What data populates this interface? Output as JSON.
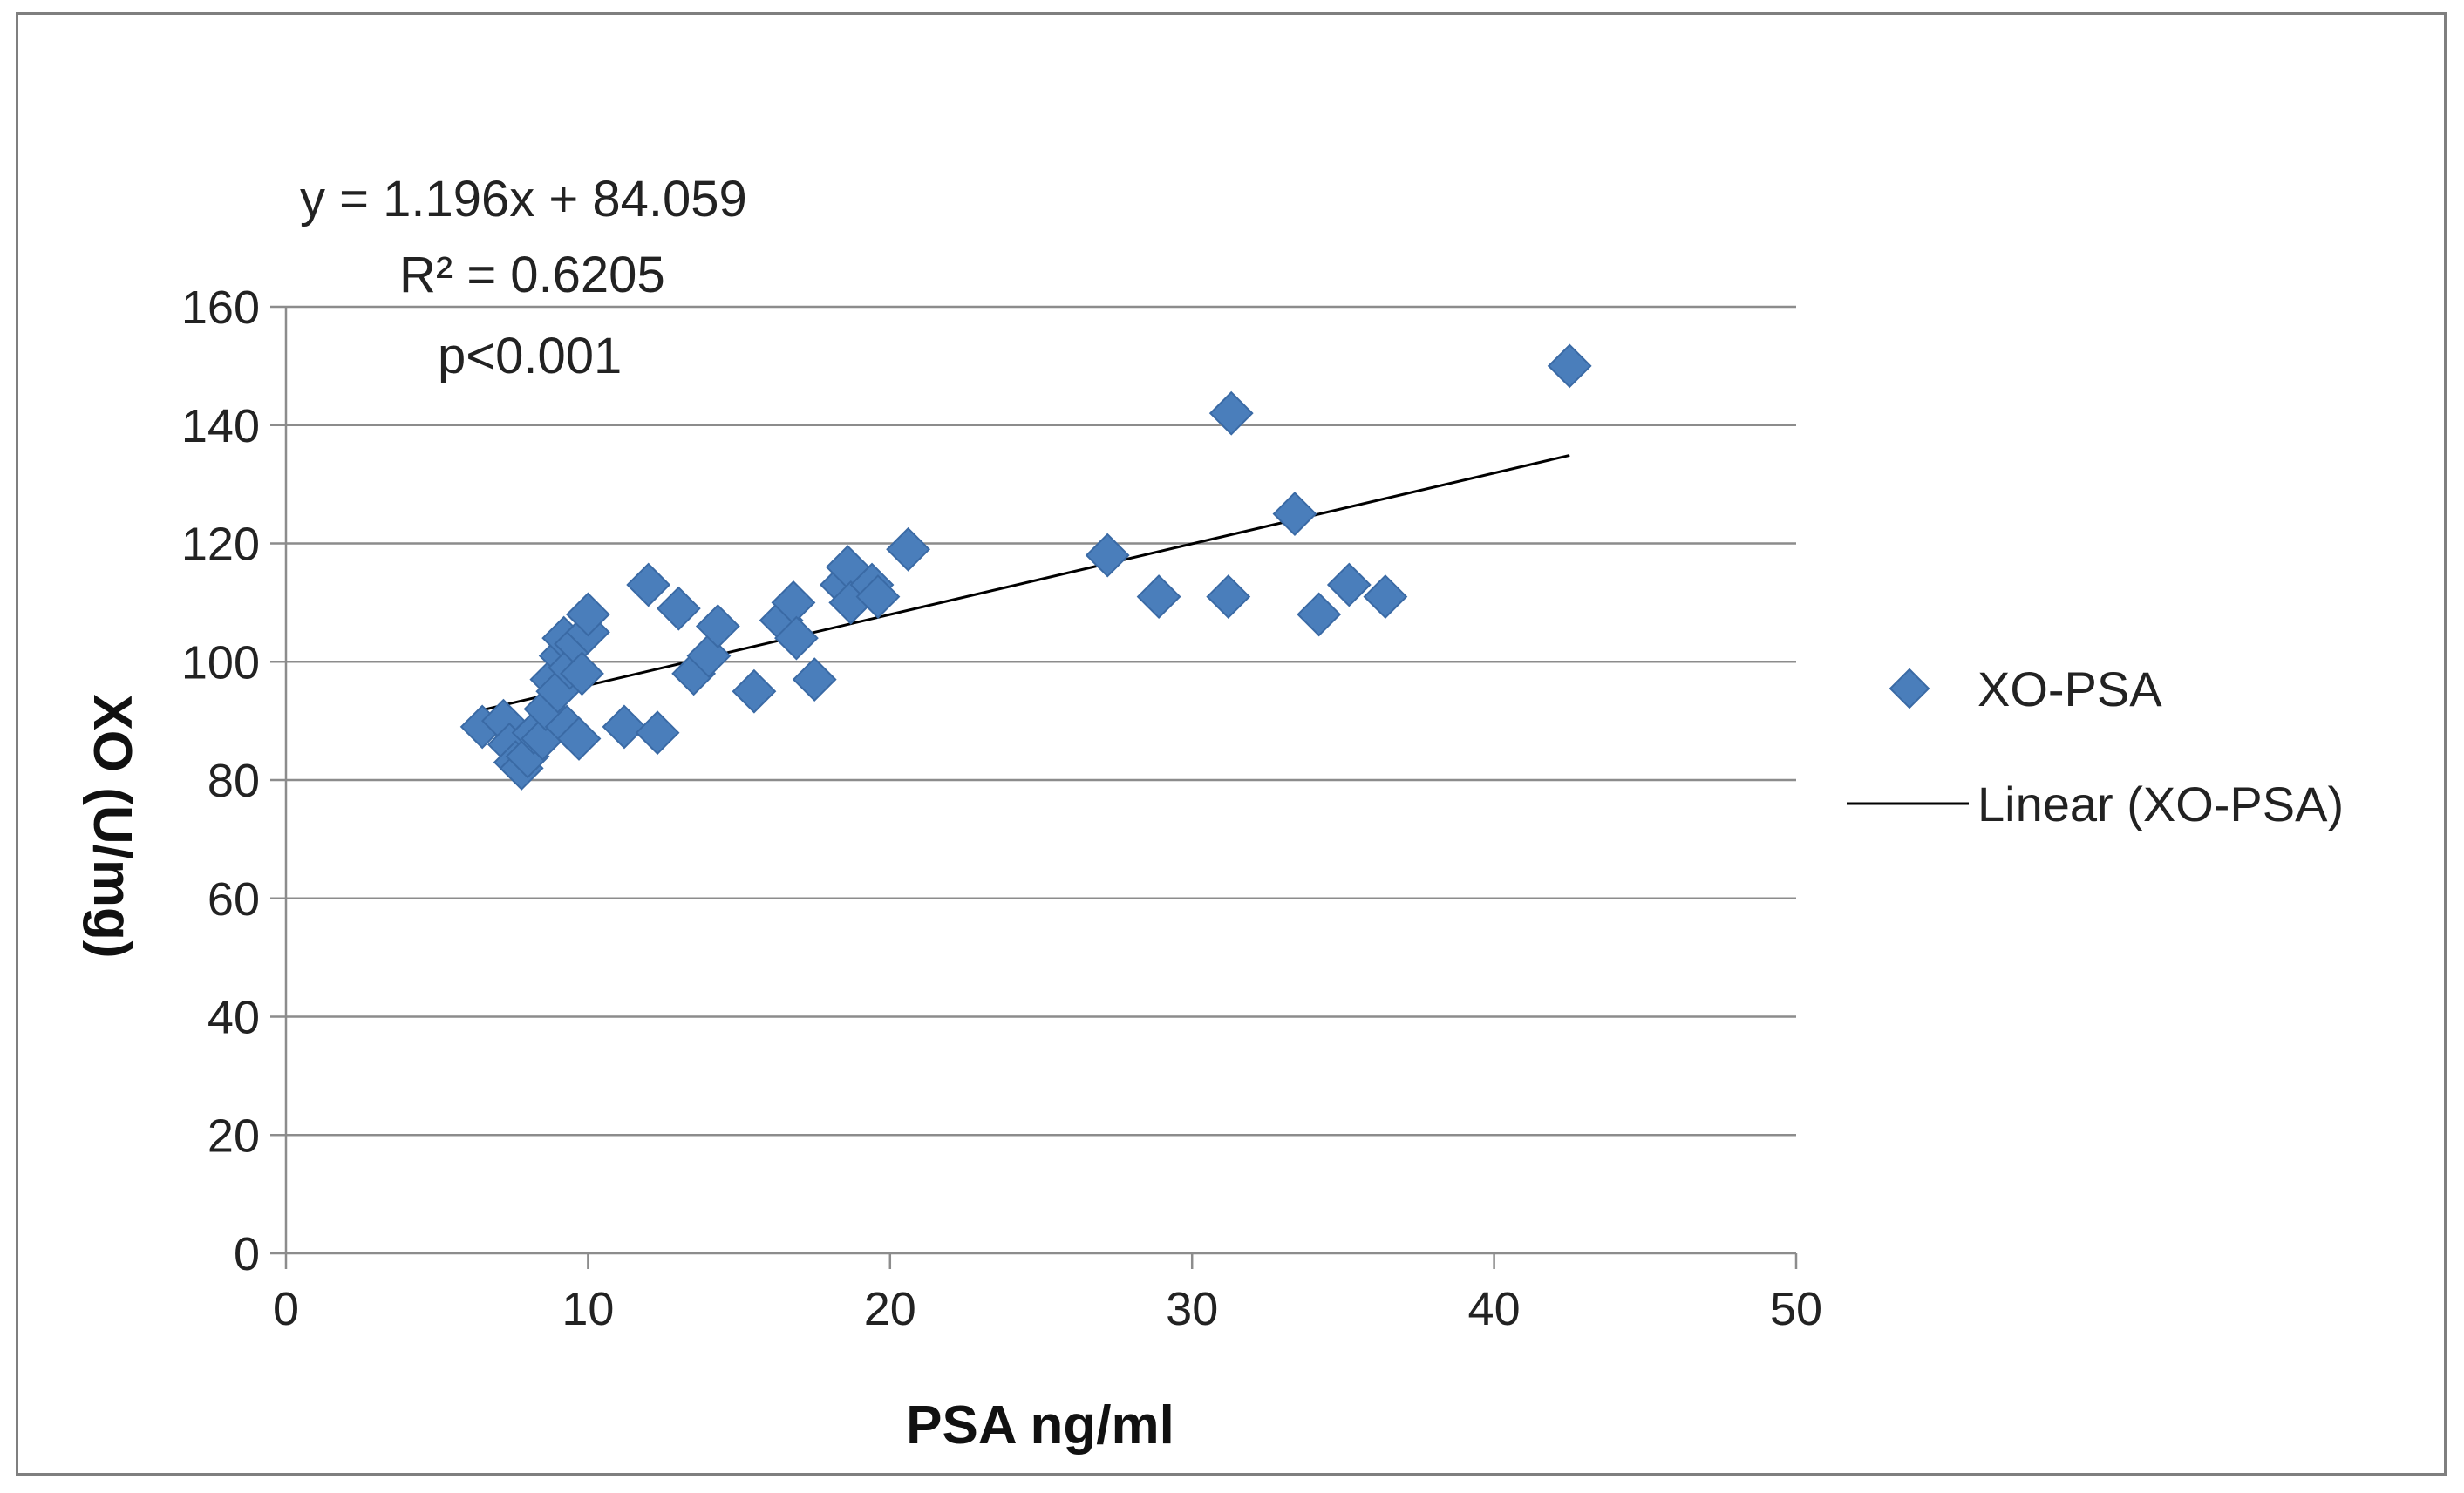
{
  "chart_data": {
    "type": "scatter",
    "title": "",
    "xlabel": "PSA ng/ml",
    "ylabel": "XO (U/mg)",
    "xlim": [
      0,
      50
    ],
    "ylim": [
      0,
      160
    ],
    "x_ticks": [
      0,
      10,
      20,
      30,
      40,
      50
    ],
    "y_ticks": [
      0,
      20,
      40,
      60,
      80,
      100,
      120,
      140,
      160
    ],
    "grid": "horizontal",
    "legend_position": "right",
    "annotations": {
      "equation": "y = 1.196x + 84.059",
      "r_squared": "R² = 0.6205",
      "p_value": "p<0.001"
    },
    "series": [
      {
        "name": "XO-PSA",
        "marker": "diamond",
        "color": "#4a7ebb",
        "points": [
          [
            6.5,
            89
          ],
          [
            7.2,
            90
          ],
          [
            7.4,
            86
          ],
          [
            7.6,
            83
          ],
          [
            7.8,
            82
          ],
          [
            8.0,
            84
          ],
          [
            8.2,
            88
          ],
          [
            8.5,
            87
          ],
          [
            8.6,
            92
          ],
          [
            8.8,
            97
          ],
          [
            9.0,
            95
          ],
          [
            9.1,
            101
          ],
          [
            9.2,
            104
          ],
          [
            9.3,
            89
          ],
          [
            9.4,
            99
          ],
          [
            9.6,
            103
          ],
          [
            9.7,
            87
          ],
          [
            9.8,
            98
          ],
          [
            10.0,
            105
          ],
          [
            10.0,
            108
          ],
          [
            11.2,
            89
          ],
          [
            12.0,
            113
          ],
          [
            12.3,
            88
          ],
          [
            13.0,
            109
          ],
          [
            13.5,
            98
          ],
          [
            14.0,
            101
          ],
          [
            14.3,
            106
          ],
          [
            15.5,
            95
          ],
          [
            16.4,
            107
          ],
          [
            16.8,
            110
          ],
          [
            16.9,
            104
          ],
          [
            17.5,
            97
          ],
          [
            18.4,
            113
          ],
          [
            18.6,
            116
          ],
          [
            18.7,
            110
          ],
          [
            19.4,
            113
          ],
          [
            19.6,
            111
          ],
          [
            20.6,
            119
          ],
          [
            27.2,
            118
          ],
          [
            28.9,
            111
          ],
          [
            31.2,
            111
          ],
          [
            31.3,
            142
          ],
          [
            33.4,
            125
          ],
          [
            34.2,
            108
          ],
          [
            35.2,
            113
          ],
          [
            36.4,
            111
          ],
          [
            42.5,
            150
          ]
        ]
      },
      {
        "name": "Linear (XO-PSA)",
        "type": "trendline",
        "slope": 1.196,
        "intercept": 84.059,
        "x_range": [
          6.5,
          42.5
        ],
        "color": "#000000"
      }
    ]
  }
}
